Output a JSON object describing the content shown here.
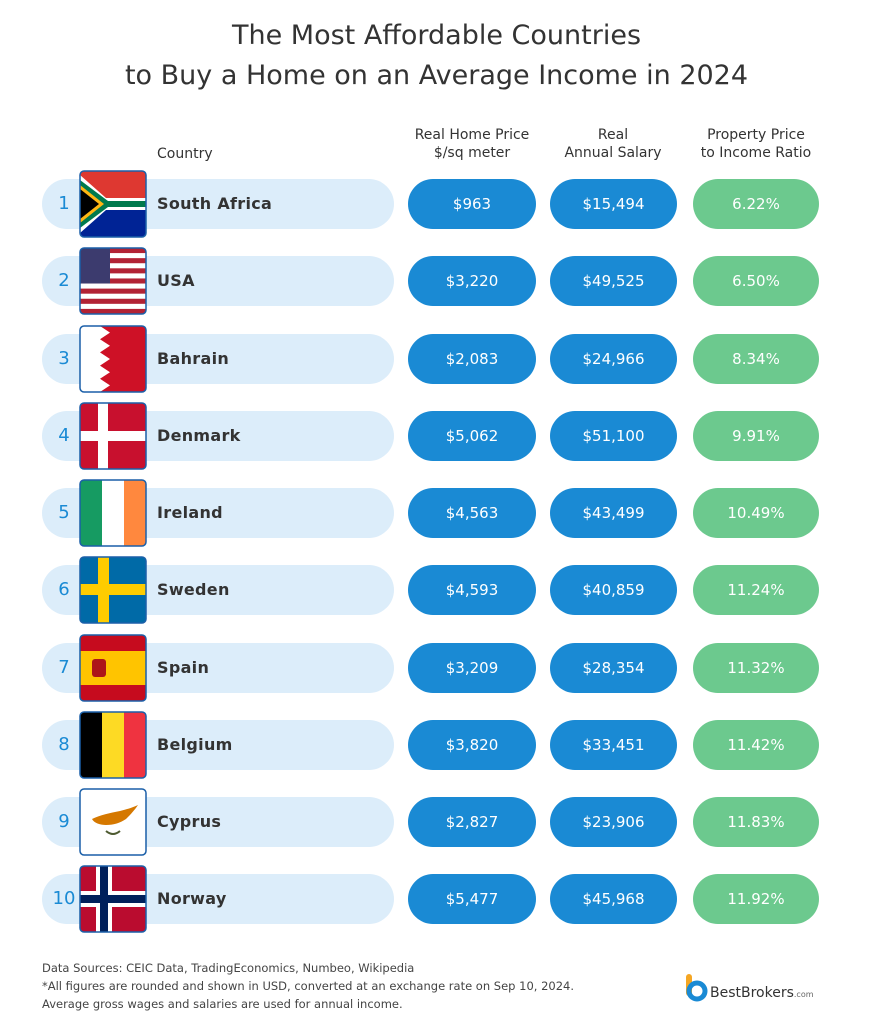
{
  "title_lines": [
    "The Most Affordable Countries",
    "to Buy a Home on an Average Income in 2024"
  ],
  "headers": {
    "country": "Country",
    "price": [
      "Real Home Price",
      "$/sq meter"
    ],
    "salary": [
      "Real",
      "Annual Salary"
    ],
    "ratio": [
      "Property Price",
      "to Income Ratio"
    ]
  },
  "rows": [
    {
      "rank": 1,
      "country": "South Africa",
      "price": "$963",
      "salary": "$15,494",
      "ratio": "6.22%"
    },
    {
      "rank": 2,
      "country": "USA",
      "price": "$3,220",
      "salary": "$49,525",
      "ratio": "6.50%"
    },
    {
      "rank": 3,
      "country": "Bahrain",
      "price": "$2,083",
      "salary": "$24,966",
      "ratio": "8.34%"
    },
    {
      "rank": 4,
      "country": "Denmark",
      "price": "$5,062",
      "salary": "$51,100",
      "ratio": "9.91%"
    },
    {
      "rank": 5,
      "country": "Ireland",
      "price": "$4,563",
      "salary": "$43,499",
      "ratio": "10.49%"
    },
    {
      "rank": 6,
      "country": "Sweden",
      "price": "$4,593",
      "salary": "$40,859",
      "ratio": "11.24%"
    },
    {
      "rank": 7,
      "country": "Spain",
      "price": "$3,209",
      "salary": "$28,354",
      "ratio": "11.32%"
    },
    {
      "rank": 8,
      "country": "Belgium",
      "price": "$3,820",
      "salary": "$33,451",
      "ratio": "11.42%"
    },
    {
      "rank": 9,
      "country": "Cyprus",
      "price": "$2,827",
      "salary": "$23,906",
      "ratio": "11.83%"
    },
    {
      "rank": 10,
      "country": "Norway",
      "price": "$5,477",
      "salary": "$45,968",
      "ratio": "11.92%"
    }
  ],
  "footer": [
    "Data Sources: CEIC Data, TradingEconomics, Numbeo, Wikipedia",
    "*All figures are rounded and shown in USD, converted at an exchange rate on Sep 10, 2024.",
    "Average gross wages and salaries are used for annual income."
  ],
  "logo": {
    "name": "BestBrokers",
    "suffix": ".com"
  }
}
